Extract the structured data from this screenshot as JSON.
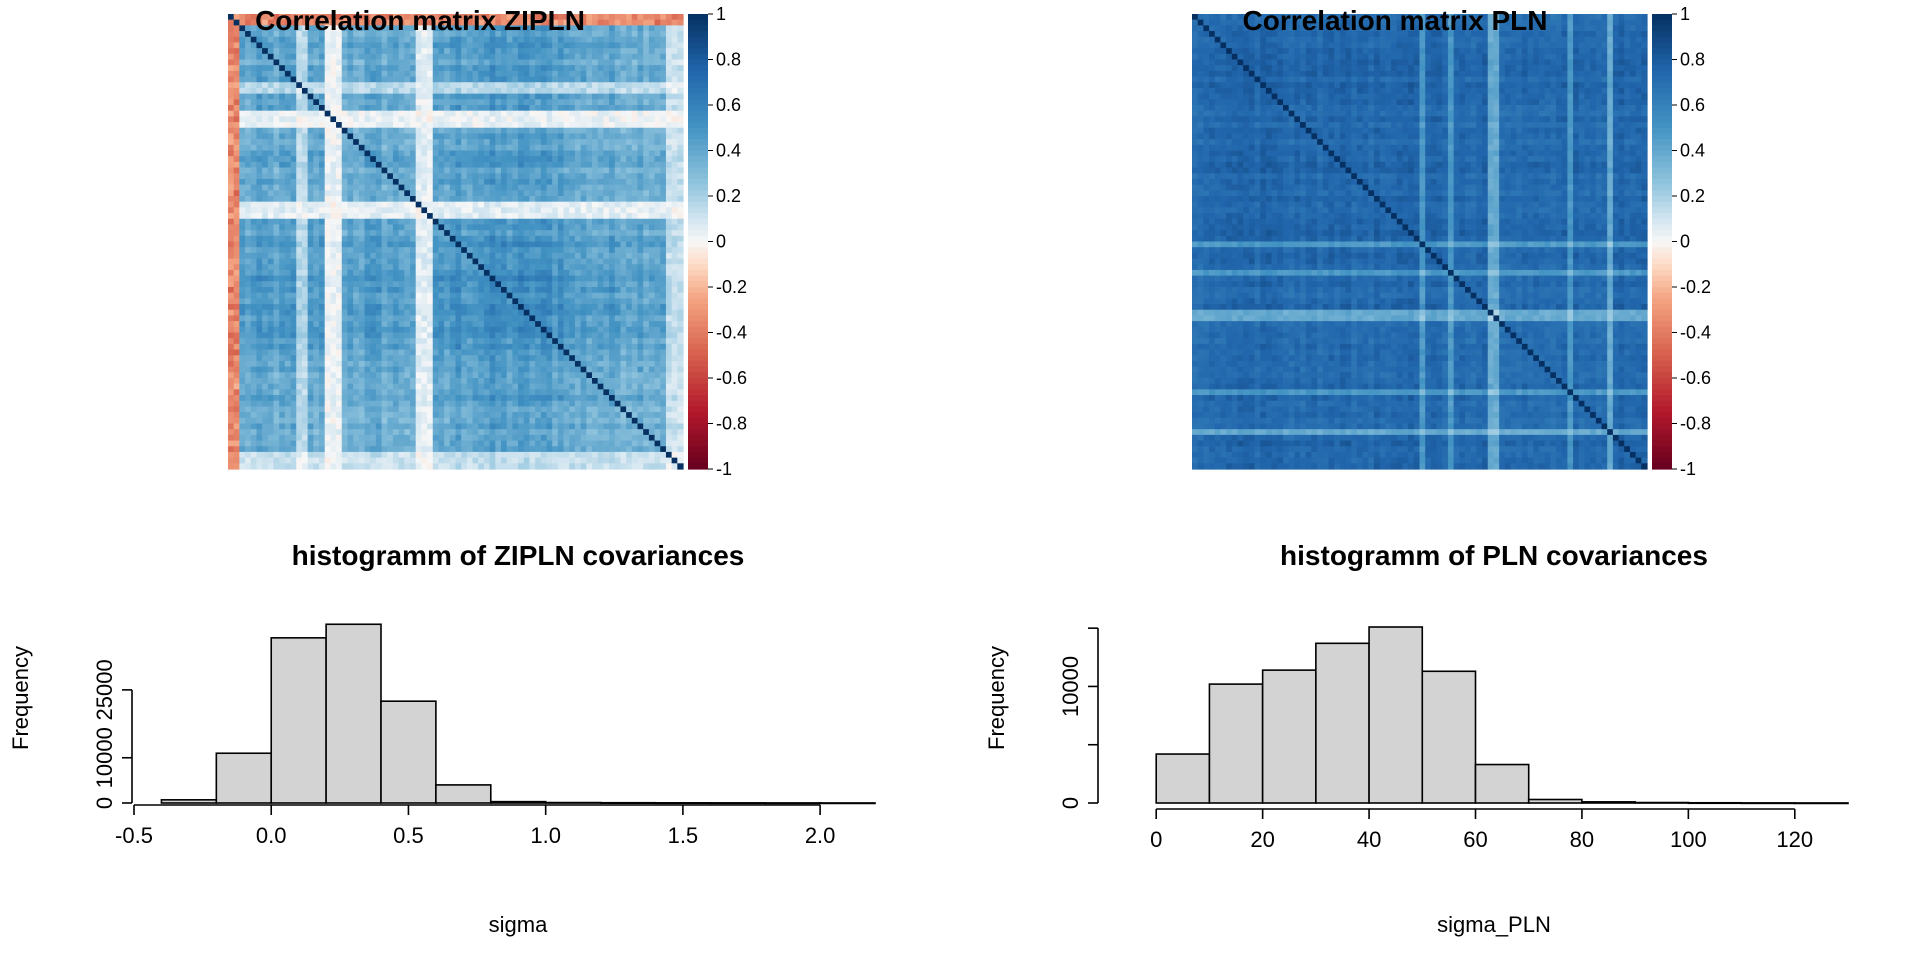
{
  "colors": {
    "negative": "#67001f",
    "zero": "#f7f7f7",
    "positive": "#053061",
    "bar_fill": "#d3d3d3",
    "bar_stroke": "#000000"
  },
  "chart_data": [
    {
      "type": "heatmap",
      "title": "Correlation matrix ZIPLN",
      "colorbar": {
        "range": [
          -1,
          1
        ],
        "tick_labels": [
          "1",
          "0.8",
          "0.6",
          "0.4",
          "0.2",
          "0",
          "-0.2",
          "-0.4",
          "-0.6",
          "-0.8",
          "-1"
        ]
      },
      "pattern": "mostly weak positive (0.2-0.6) correlations, several near-zero stripes, first columns and top rows slightly negative, unit diagonal"
    },
    {
      "type": "heatmap",
      "title": "Correlation matrix PLN",
      "colorbar": {
        "range": [
          -1,
          1
        ],
        "tick_labels": [
          "1",
          "0.8",
          "0.6",
          "0.4",
          "0.2",
          "0",
          "-0.2",
          "-0.4",
          "-0.6",
          "-0.8",
          "-1"
        ]
      },
      "pattern": "mostly strong positive (0.5-0.8) correlations, a few pale stripes, unit diagonal"
    },
    {
      "type": "bar",
      "title": "histogramm of ZIPLN covariances",
      "xlabel": "sigma",
      "ylabel": "Frequency",
      "bin_edges": [
        -0.4,
        -0.2,
        0.0,
        0.2,
        0.4,
        0.6,
        0.8,
        1.0,
        1.2,
        1.4,
        1.6,
        1.8,
        2.0,
        2.2
      ],
      "values": [
        700,
        11000,
        36500,
        39500,
        22500,
        4000,
        300,
        100,
        60,
        40,
        30,
        20,
        10
      ],
      "xlim": [
        -0.5,
        2.2
      ],
      "ylim": [
        0,
        40000
      ],
      "x_ticks": [
        -0.5,
        0.0,
        0.5,
        1.0,
        1.5,
        2.0
      ],
      "x_tick_labels": [
        "-0.5",
        "0.0",
        "0.5",
        "1.0",
        "1.5",
        "2.0"
      ],
      "y_ticks": [
        0,
        10000,
        25000
      ],
      "y_tick_labels": [
        "0",
        "10000",
        "25000"
      ]
    },
    {
      "type": "bar",
      "title": "histogramm of PLN covariances",
      "xlabel": "sigma_PLN",
      "ylabel": "Frequency",
      "bin_edges": [
        0,
        10,
        20,
        30,
        40,
        50,
        60,
        70,
        80,
        90,
        100,
        110,
        120,
        130
      ],
      "values": [
        4200,
        10200,
        11400,
        13700,
        15100,
        11300,
        3300,
        300,
        100,
        40,
        20,
        10,
        5
      ],
      "xlim": [
        -10,
        130
      ],
      "ylim": [
        0,
        15100
      ],
      "x_ticks": [
        0,
        20,
        40,
        60,
        80,
        100,
        120
      ],
      "x_tick_labels": [
        "0",
        "20",
        "40",
        "60",
        "80",
        "100",
        "120"
      ],
      "y_ticks": [
        0,
        5000,
        10000,
        15000
      ],
      "y_tick_labels": [
        "0",
        "",
        "10000",
        ""
      ]
    }
  ]
}
